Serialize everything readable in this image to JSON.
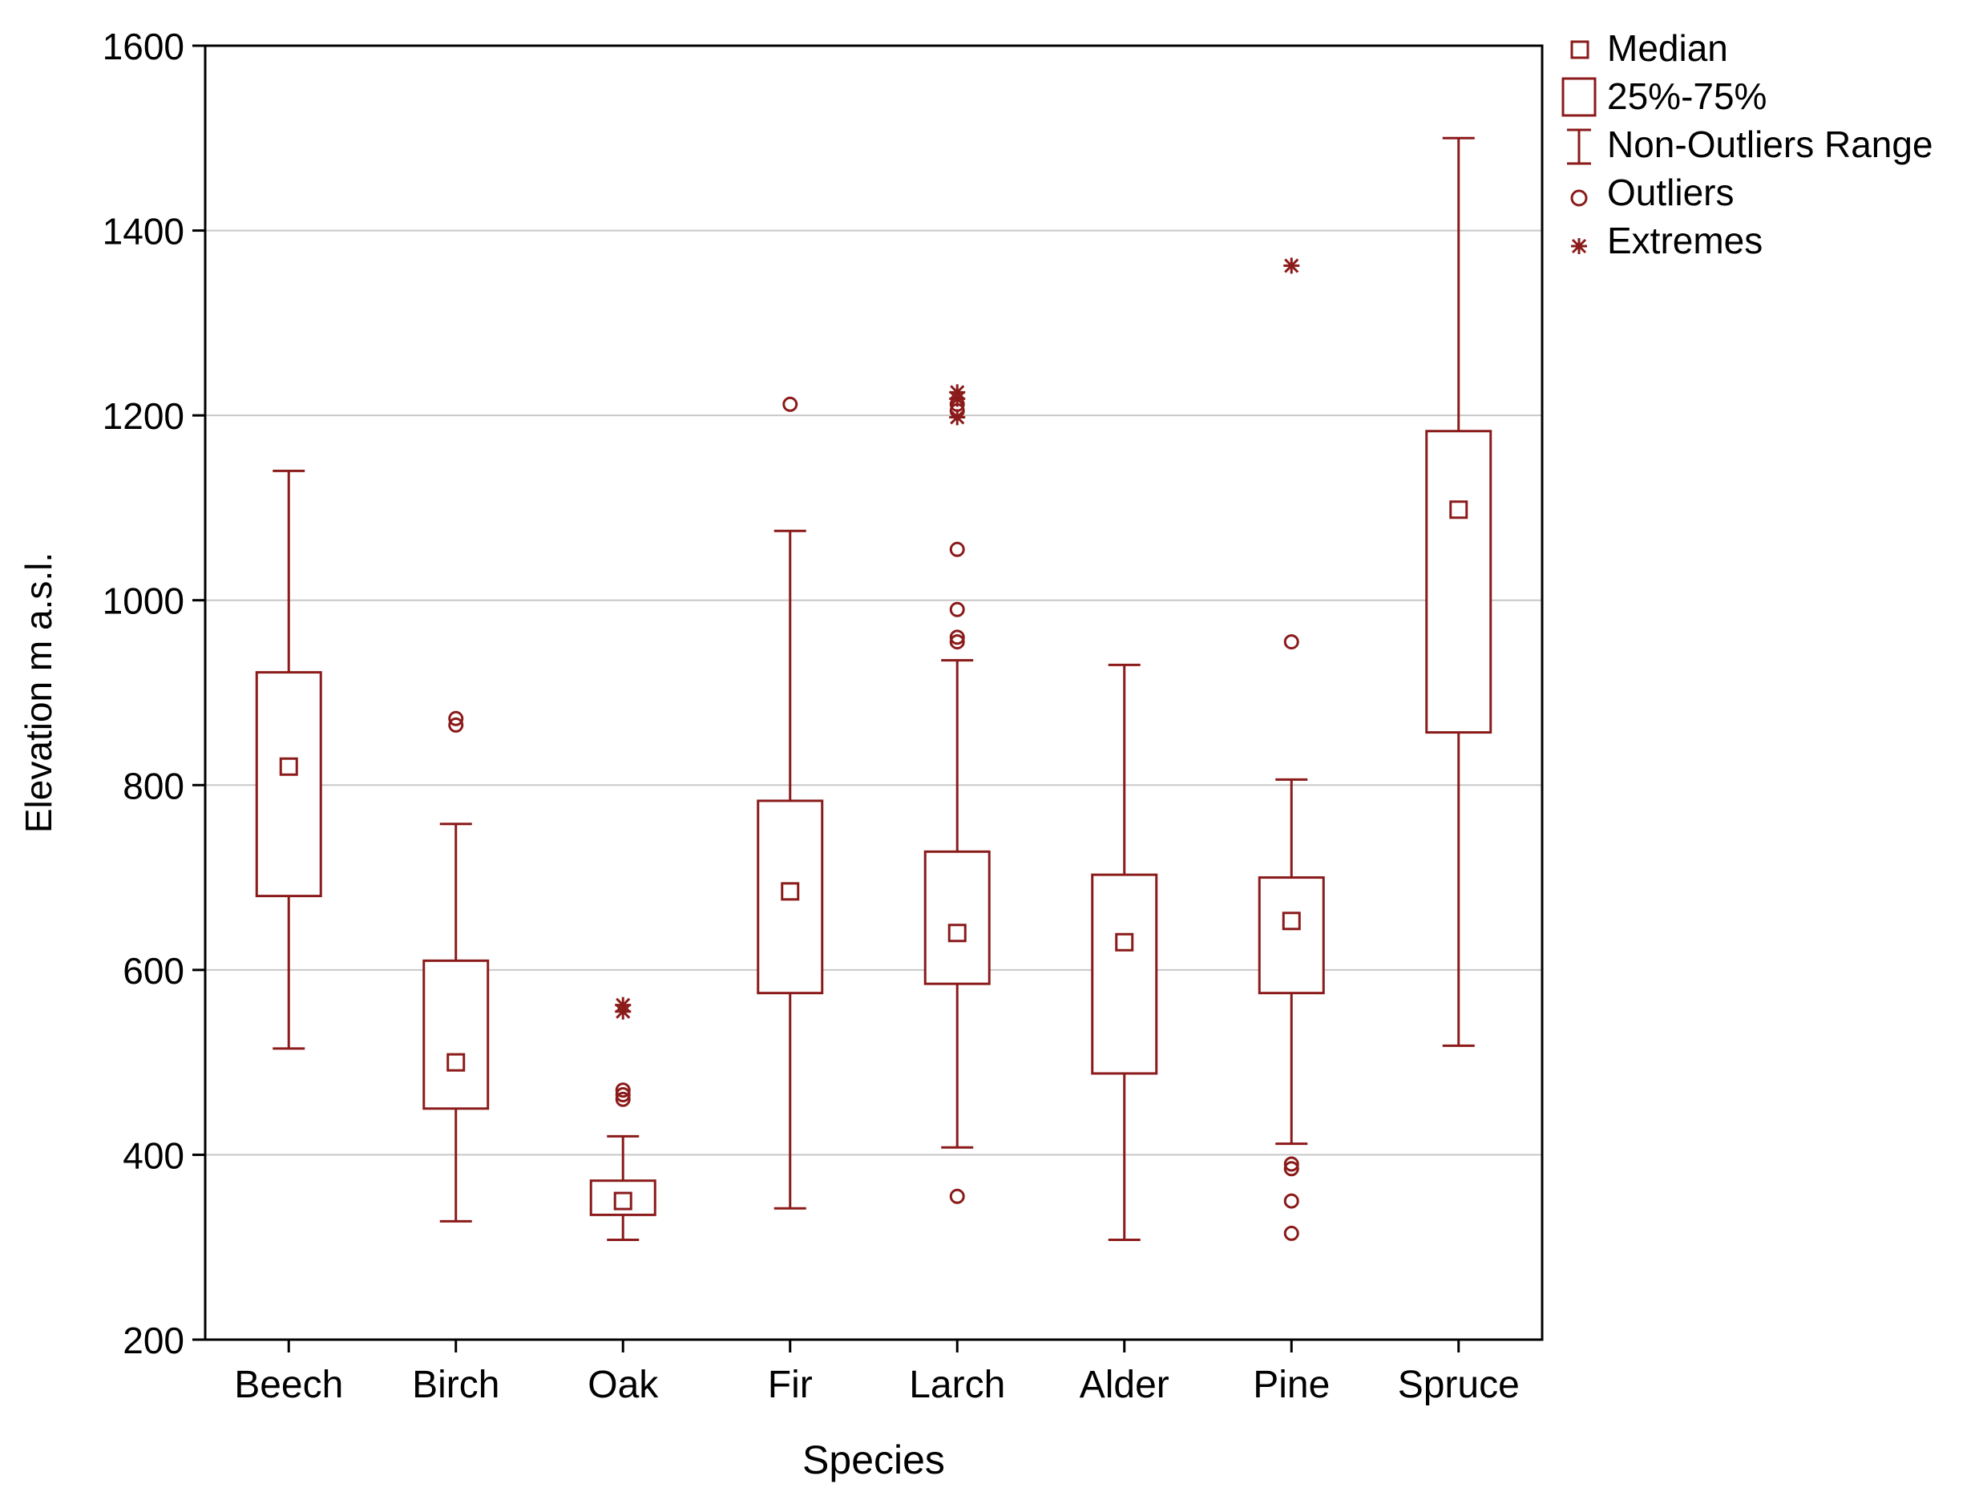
{
  "chart_data": {
    "type": "boxplot",
    "xlabel": "Species",
    "ylabel": "Elevation  m a.s.l.",
    "ylim": [
      200,
      1600
    ],
    "yticks": [
      200,
      400,
      600,
      800,
      1000,
      1200,
      1400,
      1600
    ],
    "grid": true,
    "legend_position": "top-right outside",
    "legend": {
      "median": "Median",
      "box": "25%-75%",
      "whisker": "Non-Outliers Range",
      "outlier": "Outliers",
      "extreme": "Extremes"
    },
    "colors": {
      "series": "#8b1a1a",
      "grid": "#c8c8c8",
      "axis": "#000000"
    },
    "categories": [
      {
        "name": "Beech",
        "median": 820,
        "q1": 680,
        "q3": 922,
        "whisker_low": 515,
        "whisker_high": 1140,
        "outliers": [],
        "extremes": []
      },
      {
        "name": "Birch",
        "median": 500,
        "q1": 450,
        "q3": 610,
        "whisker_low": 328,
        "whisker_high": 758,
        "outliers": [
          865,
          872
        ],
        "extremes": []
      },
      {
        "name": "Oak",
        "median": 350,
        "q1": 335,
        "q3": 372,
        "whisker_low": 308,
        "whisker_high": 420,
        "outliers": [
          460,
          465,
          470
        ],
        "extremes": [
          555,
          562
        ]
      },
      {
        "name": "Fir",
        "median": 685,
        "q1": 575,
        "q3": 783,
        "whisker_low": 342,
        "whisker_high": 1075,
        "outliers": [
          1212
        ],
        "extremes": []
      },
      {
        "name": "Larch",
        "median": 640,
        "q1": 585,
        "q3": 728,
        "whisker_low": 408,
        "whisker_high": 935,
        "outliers": [
          355,
          955,
          960,
          990,
          1055,
          1205,
          1212
        ],
        "extremes": [
          1198,
          1218,
          1225
        ]
      },
      {
        "name": "Alder",
        "median": 630,
        "q1": 488,
        "q3": 703,
        "whisker_low": 308,
        "whisker_high": 930,
        "outliers": [],
        "extremes": []
      },
      {
        "name": "Pine",
        "median": 653,
        "q1": 575,
        "q3": 700,
        "whisker_low": 412,
        "whisker_high": 806,
        "outliers": [
          315,
          350,
          385,
          390,
          955
        ],
        "extremes": [
          1362
        ]
      },
      {
        "name": "Spruce",
        "median": 1098,
        "q1": 857,
        "q3": 1183,
        "whisker_low": 518,
        "whisker_high": 1500,
        "outliers": [],
        "extremes": []
      }
    ]
  }
}
